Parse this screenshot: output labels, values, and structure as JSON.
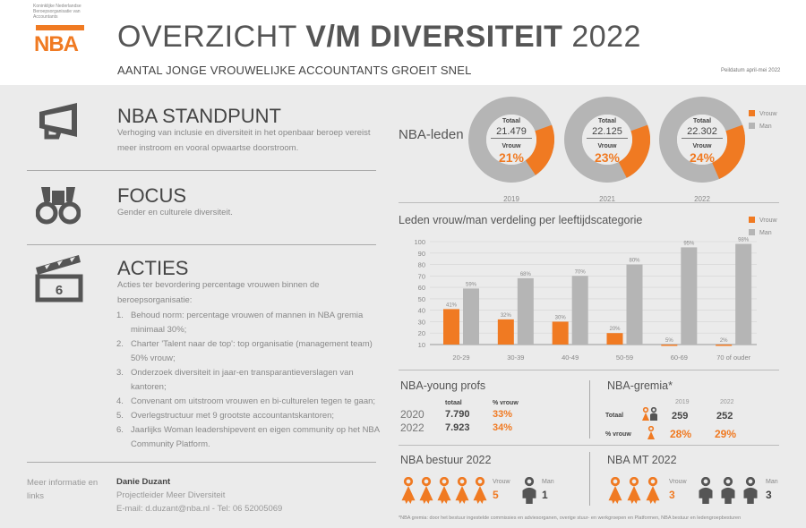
{
  "header": {
    "logo_org_text": "Koninklijke Nederlandse Beroepsorganisatie van Accountants",
    "logo_text": "NBA",
    "title_light_1": "OVERZICHT ",
    "title_bold": "V/M DIVERSITEIT",
    "title_light_2": " 2022",
    "subtitle": "AANTAL JONGE VROUWELIJKE ACCOUNTANTS GROEIT SNEL",
    "peildatum": "Peildatum april-mei 2022"
  },
  "standpunt": {
    "icon": "megaphone-icon",
    "title": "NBA STANDPUNT",
    "text": "Verhoging van inclusie en diversiteit in het openbaar beroep vereist meer instroom en vooral opwaartse doorstroom."
  },
  "focus": {
    "icon": "binoculars-icon",
    "title": "FOCUS",
    "text": "Gender en culturele diversiteit."
  },
  "acties": {
    "icon": "clapperboard-icon",
    "icon_number": "6",
    "title": "ACTIES",
    "intro": "Acties ter bevordering percentage vrouwen binnen de beroepsorganisatie:",
    "items": [
      {
        "num": "1.",
        "text": "Behoud norm: percentage vrouwen of mannen in NBA gremia minimaal 30%;"
      },
      {
        "num": "2.",
        "text": "Charter 'Talent naar de top': top organisatie (management team) 50% vrouw;"
      },
      {
        "num": "3.",
        "text": "Onderzoek diversiteit in jaar-en transparantieverslagen van kantoren;"
      },
      {
        "num": "4.",
        "text": "Convenant om uitstroom vrouwen en bi-culturelen tegen te gaan;"
      },
      {
        "num": "5.",
        "text": "Overlegstructuur met 9 grootste accountantskantoren;"
      },
      {
        "num": "6.",
        "text": "Jaarlijks Woman leadershipevent en eigen community op het NBA Community Platform."
      }
    ]
  },
  "contact": {
    "label": "Meer informatie en links",
    "name": "Danie Duzant",
    "role": "Projectleider Meer Diversiteit",
    "details": "E-mail: d.duzant@nba.nl - Tel: 06 52005069"
  },
  "leden": {
    "label": "NBA-leden",
    "totaal_label": "Totaal",
    "vrouw_label": "Vrouw",
    "donuts": [
      {
        "year": "2019",
        "total": "21.479",
        "pct": "21%",
        "value": 21
      },
      {
        "year": "2021",
        "total": "22.125",
        "pct": "23%",
        "value": 23
      },
      {
        "year": "2022",
        "total": "22.302",
        "pct": "24%",
        "value": 24
      }
    ],
    "legend": [
      "Vrouw",
      "Man"
    ]
  },
  "colors": {
    "vrouw": "#f07a22",
    "man": "#b5b5b5",
    "dark": "#555555"
  },
  "chart_data": {
    "type": "bar",
    "title": "Leden vrouw/man verdeling per leeftijdscategorie",
    "categories": [
      "20-29",
      "30-39",
      "40-49",
      "50-59",
      "60-69",
      "70 of ouder"
    ],
    "series": [
      {
        "name": "Vrouw",
        "values": [
          41,
          32,
          30,
          20,
          5,
          2
        ],
        "labels": [
          "41%",
          "32%",
          "30%",
          "20%",
          "5%",
          "2%"
        ]
      },
      {
        "name": "Man",
        "values": [
          59,
          68,
          70,
          80,
          95,
          98
        ],
        "labels": [
          "59%",
          "68%",
          "70%",
          "80%",
          "95%",
          "98%"
        ]
      }
    ],
    "yticks": [
      "100",
      "90",
      "80",
      "70",
      "60",
      "50",
      "40",
      "30",
      "20",
      "10"
    ],
    "ylim": [
      10,
      100
    ],
    "grid": true,
    "legend_position": "top-right",
    "xlabel": "",
    "ylabel": ""
  },
  "young_profs": {
    "title": "NBA-young profs",
    "col_totaal": "totaal",
    "col_vrouw": "% vrouw",
    "rows": [
      {
        "year": "2020",
        "total": "7.790",
        "pct": "33%"
      },
      {
        "year": "2022",
        "total": "7.923",
        "pct": "34%"
      }
    ]
  },
  "gremia": {
    "title": "NBA-gremia*",
    "years": [
      "2019",
      "2022"
    ],
    "totaal_label": "Totaal",
    "vrouw_label": "% vrouw",
    "totaal": [
      "259",
      "252"
    ],
    "pct": [
      "28%",
      "29%"
    ]
  },
  "bestuur": {
    "title": "NBA bestuur 2022",
    "vrouw_label": "Vrouw",
    "vrouw_count": "5",
    "man_label": "Man",
    "man_count": "1"
  },
  "mt": {
    "title": "NBA MT 2022",
    "vrouw_label": "Vrouw",
    "vrouw_count": "3",
    "man_label": "Man",
    "man_count": "3"
  },
  "footnote": "*NBA gremia: door het bestuur ingestelde commissies en adviesorganen, overige stuur- en werkgroepen en Platformen, NBA bestuur en ledengroepbesturen"
}
